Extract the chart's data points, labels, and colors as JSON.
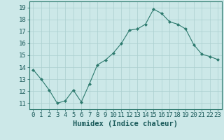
{
  "xlabel": "Humidex (Indice chaleur)",
  "x_values": [
    0,
    1,
    2,
    3,
    4,
    5,
    6,
    7,
    8,
    9,
    10,
    11,
    12,
    13,
    14,
    15,
    16,
    17,
    18,
    19,
    20,
    21,
    22,
    23
  ],
  "y_values": [
    13.8,
    13.0,
    12.1,
    11.0,
    11.2,
    12.1,
    11.1,
    12.6,
    14.2,
    14.6,
    15.2,
    16.0,
    17.1,
    17.2,
    17.6,
    18.85,
    18.5,
    17.8,
    17.6,
    17.2,
    15.9,
    15.1,
    14.9,
    14.65
  ],
  "line_color": "#2d7a6e",
  "marker": "D",
  "marker_size": 2.0,
  "bg_color": "#cce8e8",
  "grid_color": "#aacfcf",
  "ylim": [
    10.5,
    19.5
  ],
  "xlim": [
    -0.5,
    23.5
  ],
  "yticks": [
    11,
    12,
    13,
    14,
    15,
    16,
    17,
    18,
    19
  ],
  "xticks": [
    0,
    1,
    2,
    3,
    4,
    5,
    6,
    7,
    8,
    9,
    10,
    11,
    12,
    13,
    14,
    15,
    16,
    17,
    18,
    19,
    20,
    21,
    22,
    23
  ],
  "tick_fontsize": 6.5,
  "xlabel_fontsize": 7.5,
  "label_color": "#1a5a5a",
  "spine_color": "#2d7a6e",
  "linewidth": 0.8
}
